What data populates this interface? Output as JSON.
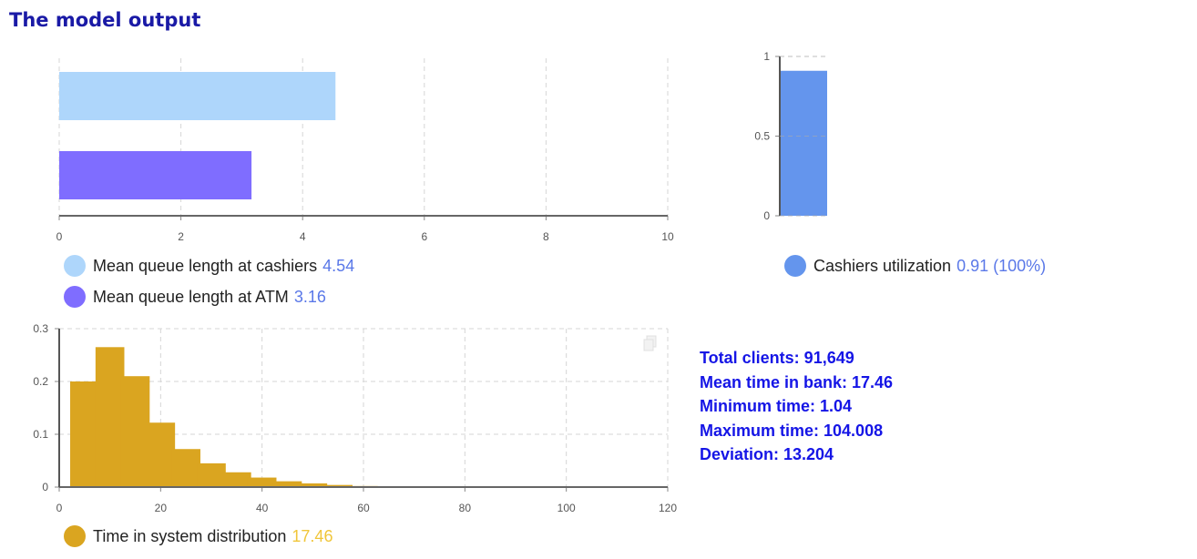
{
  "page": {
    "title": "The model output"
  },
  "colors": {
    "cashiers": "#aed6fb",
    "atm": "#7f6dff",
    "utilization": "#6495ed",
    "histogram": "#daa520",
    "value_text": "#5a78e8",
    "hist_value_text": "#f0c63a",
    "stats_text": "#1515e6",
    "title": "#1a1aa6"
  },
  "chart_data": [
    {
      "type": "bar",
      "orientation": "horizontal",
      "categories": [
        "Mean queue length at cashiers",
        "Mean queue length at ATM"
      ],
      "values": [
        4.54,
        3.16
      ],
      "xlim": [
        0,
        10
      ],
      "xticks": [
        "0",
        "2",
        "4",
        "6",
        "8",
        "10"
      ],
      "grid": true,
      "legend": [
        {
          "label": "Mean queue length at cashiers",
          "value": "4.54"
        },
        {
          "label": "Mean queue length at ATM",
          "value": "3.16"
        }
      ]
    },
    {
      "type": "bar",
      "categories": [
        "Cashiers utilization"
      ],
      "values": [
        0.91
      ],
      "ylim": [
        0,
        1
      ],
      "yticks": [
        "1",
        "0.5",
        "0"
      ],
      "legend": [
        {
          "label": "Cashiers utilization",
          "value": "0.91 (100%)"
        }
      ]
    },
    {
      "type": "bar",
      "x": [
        5,
        10,
        15,
        20,
        25,
        30,
        35,
        40,
        45,
        50,
        55,
        60,
        65,
        70,
        75,
        80
      ],
      "values": [
        0.2,
        0.265,
        0.21,
        0.122,
        0.072,
        0.045,
        0.028,
        0.018,
        0.011,
        0.007,
        0.004,
        0.002,
        0.001,
        0.001,
        0.0005,
        0.0003
      ],
      "bin_width": 6.4,
      "xlim": [
        0,
        120
      ],
      "ylim": [
        0,
        0.3
      ],
      "xticks": [
        "0",
        "20",
        "40",
        "60",
        "80",
        "100",
        "120"
      ],
      "yticks": [
        "0.3",
        "0.2",
        "0.1",
        "0"
      ],
      "grid": true,
      "legend": [
        {
          "label": "Time in system distribution",
          "value": "17.46"
        }
      ]
    }
  ],
  "stats": [
    "Total clients: 91,649",
    "Mean time in bank: 17.46",
    "Minimum time: 1.04",
    "Maximum time: 104.008",
    "Deviation: 13.204"
  ]
}
